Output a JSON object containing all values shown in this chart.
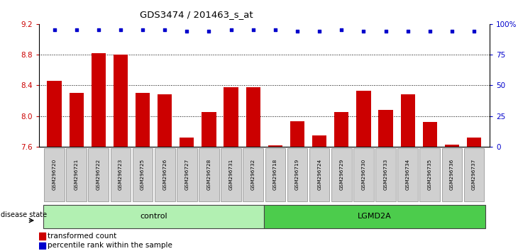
{
  "title": "GDS3474 / 201463_s_at",
  "samples": [
    "GSM296720",
    "GSM296721",
    "GSM296722",
    "GSM296723",
    "GSM296725",
    "GSM296726",
    "GSM296727",
    "GSM296728",
    "GSM296731",
    "GSM296732",
    "GSM296718",
    "GSM296719",
    "GSM296724",
    "GSM296729",
    "GSM296730",
    "GSM296733",
    "GSM296734",
    "GSM296735",
    "GSM296736",
    "GSM296737"
  ],
  "bar_values": [
    8.46,
    8.3,
    8.82,
    8.8,
    8.3,
    8.28,
    7.72,
    8.05,
    8.38,
    8.38,
    7.62,
    7.93,
    7.75,
    8.05,
    8.33,
    8.08,
    8.28,
    7.92,
    7.63,
    7.72
  ],
  "percentile_pct": [
    95,
    95,
    95,
    95,
    95,
    95,
    94,
    94,
    95,
    95,
    95,
    94,
    94,
    95,
    94,
    94,
    94,
    94,
    94,
    94
  ],
  "bar_color": "#cc0000",
  "percentile_color": "#0000cc",
  "ylim_left": [
    7.6,
    9.2
  ],
  "ylim_right": [
    0,
    100
  ],
  "yticks_left": [
    7.6,
    8.0,
    8.4,
    8.8,
    9.2
  ],
  "yticks_right": [
    0,
    25,
    50,
    75,
    100
  ],
  "ytick_labels_right": [
    "0",
    "25",
    "50",
    "75",
    "100%"
  ],
  "hlines": [
    8.0,
    8.4,
    8.8
  ],
  "groups": [
    {
      "label": "control",
      "start": 0,
      "end": 10,
      "color": "#b2f0b2"
    },
    {
      "label": "LGMD2A",
      "start": 10,
      "end": 20,
      "color": "#4ccc4c"
    }
  ],
  "disease_state_label": "disease state",
  "legend_bar_label": "transformed count",
  "legend_dot_label": "percentile rank within the sample",
  "title_color": "#000000",
  "left_axis_color": "#cc0000",
  "right_axis_color": "#0000cc",
  "bar_bottom": 7.6,
  "bar_width": 0.65
}
